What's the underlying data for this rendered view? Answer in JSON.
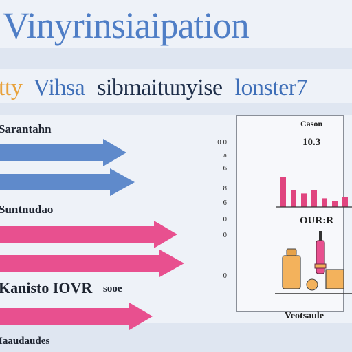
{
  "header": {
    "title": "Vinyrinsiaipation",
    "subtitle_parts": [
      "tty",
      "Vihsa",
      "sibmaitunyise",
      "lonster7"
    ]
  },
  "left_labels": {
    "label1": "Sarantahn",
    "label2": "Suntnudao",
    "label3": "Kanisto IOVR",
    "label3_suffix": "sooe",
    "label4": "Iaaudaudes"
  },
  "arrows": [
    {
      "color": "#5f8acb"
    },
    {
      "color": "#5f8acb"
    },
    {
      "color": "#e8508f"
    },
    {
      "color": "#e8508f"
    },
    {
      "color": "#e8508f"
    }
  ],
  "axis_ticks": [
    "0 0",
    "a",
    "6",
    "8",
    "6",
    "0",
    "0",
    "0"
  ],
  "panel": {
    "top_label": "Cason",
    "top_value": "10.3",
    "mid_label": "OUR:R",
    "bottom_label": "Veotsaule",
    "bars": [
      0.62,
      0.35,
      0.28,
      0.35,
      0.18,
      0.12,
      0.2
    ]
  },
  "colors": {
    "blue": "#5f8acb",
    "pink": "#e8508f",
    "orange": "#f2b05a",
    "bar": "#e0457f"
  }
}
